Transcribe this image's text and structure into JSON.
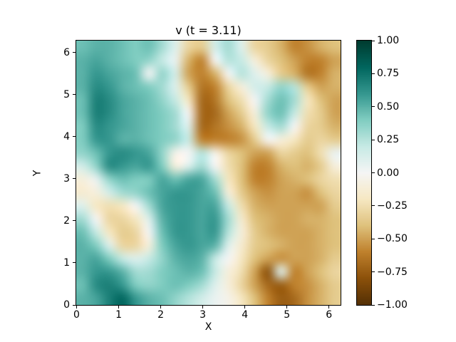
{
  "figure": {
    "background": "#ffffff"
  },
  "chart_data": {
    "type": "heatmap",
    "title": "v (t = 3.11)",
    "xlabel": "X",
    "ylabel": "Y",
    "x_range": [
      0,
      6.2832
    ],
    "y_range": [
      0,
      6.2832
    ],
    "vmin": -1.0,
    "vmax": 1.0,
    "x_tick_values": [
      0,
      1,
      2,
      3,
      4,
      5,
      6
    ],
    "x_tick_labels": [
      "0",
      "1",
      "2",
      "3",
      "4",
      "5",
      "6"
    ],
    "y_tick_values": [
      0,
      1,
      2,
      3,
      4,
      5,
      6
    ],
    "y_tick_labels": [
      "0",
      "1",
      "2",
      "3",
      "4",
      "5",
      "6"
    ],
    "colorbar": {
      "tick_values": [
        1.0,
        0.75,
        0.5,
        0.25,
        0.0,
        -0.25,
        -0.5,
        -0.75,
        -1.0
      ],
      "tick_labels": [
        "1.00",
        "0.75",
        "0.50",
        "0.25",
        "0.00",
        "−0.25",
        "−0.50",
        "−0.75",
        "−1.00"
      ]
    },
    "colormap": {
      "name": "BrBG",
      "stops": [
        [
          0.0,
          "#543005"
        ],
        [
          0.1,
          "#8c510a"
        ],
        [
          0.2,
          "#bf812d"
        ],
        [
          0.3,
          "#dfc27d"
        ],
        [
          0.4,
          "#f6e8c3"
        ],
        [
          0.5,
          "#f5f5f5"
        ],
        [
          0.6,
          "#c7eae5"
        ],
        [
          0.7,
          "#80cdc1"
        ],
        [
          0.8,
          "#35978f"
        ],
        [
          0.9,
          "#01665e"
        ],
        [
          1.0,
          "#003c30"
        ]
      ]
    },
    "grid_orientation": "rows_top_to_bottom",
    "values": [
      [
        0.45,
        0.5,
        0.5,
        0.45,
        0.4,
        0.45,
        0.3,
        0.1,
        -0.3,
        -0.35,
        0.15,
        0.3,
        0.1,
        -0.3,
        -0.35,
        -0.45,
        -0.6,
        -0.55,
        -0.45,
        -0.4
      ],
      [
        0.5,
        0.55,
        0.5,
        0.45,
        0.4,
        0.35,
        0.2,
        0.05,
        -0.45,
        -0.6,
        0.0,
        0.25,
        0.2,
        -0.1,
        -0.3,
        -0.4,
        -0.5,
        -0.6,
        -0.6,
        -0.5
      ],
      [
        0.5,
        0.6,
        0.55,
        0.5,
        0.45,
        0.0,
        0.35,
        0.15,
        -0.5,
        -0.6,
        -0.45,
        0.0,
        0.25,
        0.1,
        -0.1,
        -0.35,
        -0.45,
        -0.65,
        -0.6,
        -0.45
      ],
      [
        0.5,
        0.65,
        0.6,
        0.5,
        0.45,
        0.4,
        0.3,
        0.1,
        -0.35,
        -0.65,
        -0.6,
        -0.3,
        -0.1,
        0.15,
        0.2,
        0.35,
        0.25,
        -0.35,
        -0.5,
        -0.45
      ],
      [
        0.45,
        0.7,
        0.65,
        0.55,
        0.5,
        0.45,
        0.35,
        0.2,
        -0.2,
        -0.7,
        -0.65,
        -0.4,
        -0.25,
        0.0,
        0.3,
        0.45,
        0.3,
        -0.2,
        -0.4,
        -0.5
      ],
      [
        0.45,
        0.7,
        0.65,
        0.55,
        0.5,
        0.45,
        0.4,
        0.3,
        0.0,
        -0.7,
        -0.7,
        -0.5,
        -0.35,
        -0.1,
        0.35,
        0.45,
        0.2,
        -0.25,
        -0.35,
        -0.5
      ],
      [
        0.4,
        0.65,
        0.6,
        0.55,
        0.5,
        0.45,
        0.4,
        0.3,
        0.1,
        -0.7,
        -0.65,
        -0.55,
        -0.45,
        -0.2,
        0.2,
        0.3,
        0.0,
        -0.3,
        -0.35,
        -0.45
      ],
      [
        0.4,
        0.6,
        0.6,
        0.5,
        0.5,
        0.45,
        0.4,
        0.35,
        0.2,
        -0.6,
        -0.6,
        -0.6,
        -0.55,
        -0.35,
        0.0,
        -0.1,
        -0.2,
        -0.35,
        -0.3,
        -0.35
      ],
      [
        0.35,
        0.45,
        0.6,
        0.65,
        0.6,
        0.55,
        0.35,
        -0.05,
        0.0,
        0.25,
        -0.05,
        -0.3,
        -0.4,
        -0.5,
        -0.5,
        -0.3,
        -0.35,
        -0.4,
        -0.25,
        0.05
      ],
      [
        0.15,
        0.35,
        0.65,
        0.6,
        0.55,
        0.6,
        0.4,
        -0.1,
        0.1,
        0.3,
        0.0,
        -0.25,
        -0.4,
        -0.6,
        -0.6,
        -0.45,
        -0.4,
        -0.45,
        -0.35,
        -0.1
      ],
      [
        -0.1,
        0.05,
        0.35,
        0.45,
        0.4,
        0.4,
        0.55,
        0.45,
        0.55,
        0.55,
        0.3,
        -0.2,
        -0.4,
        -0.6,
        -0.6,
        -0.5,
        -0.45,
        -0.4,
        -0.3,
        -0.25
      ],
      [
        -0.15,
        -0.1,
        0.15,
        0.3,
        0.35,
        0.45,
        0.55,
        0.6,
        0.6,
        0.55,
        0.45,
        -0.1,
        -0.35,
        -0.5,
        -0.55,
        -0.5,
        -0.5,
        -0.55,
        -0.4,
        -0.3
      ],
      [
        0.1,
        -0.2,
        -0.25,
        -0.2,
        0.0,
        0.3,
        0.55,
        0.6,
        0.6,
        0.55,
        0.55,
        0.2,
        -0.25,
        -0.45,
        -0.5,
        -0.5,
        -0.5,
        -0.5,
        -0.5,
        -0.35
      ],
      [
        0.3,
        0.0,
        -0.3,
        -0.3,
        -0.2,
        0.1,
        0.5,
        0.6,
        0.6,
        0.55,
        0.6,
        0.3,
        -0.15,
        -0.4,
        -0.45,
        -0.5,
        -0.5,
        -0.45,
        -0.45,
        -0.4
      ],
      [
        0.45,
        0.2,
        -0.2,
        -0.35,
        -0.3,
        0.0,
        0.45,
        0.6,
        0.6,
        0.55,
        0.6,
        0.25,
        -0.1,
        -0.35,
        -0.45,
        -0.5,
        -0.5,
        -0.5,
        -0.45,
        -0.4
      ],
      [
        0.5,
        0.4,
        0.1,
        -0.3,
        -0.3,
        -0.1,
        0.4,
        0.55,
        0.6,
        0.55,
        0.5,
        0.1,
        -0.15,
        -0.35,
        -0.4,
        -0.45,
        -0.5,
        -0.5,
        -0.45,
        -0.4
      ],
      [
        0.5,
        0.55,
        0.4,
        0.2,
        0.1,
        0.2,
        0.35,
        0.5,
        0.55,
        0.5,
        0.2,
        0.0,
        -0.2,
        -0.4,
        -0.5,
        -0.55,
        -0.5,
        -0.5,
        -0.45,
        -0.35
      ],
      [
        0.5,
        0.6,
        0.6,
        0.5,
        0.3,
        0.3,
        0.4,
        0.45,
        0.5,
        0.45,
        0.2,
        -0.1,
        -0.25,
        -0.5,
        -0.8,
        0.1,
        -0.6,
        -0.5,
        -0.4,
        -0.3
      ],
      [
        0.45,
        0.65,
        0.7,
        0.6,
        0.4,
        0.35,
        0.4,
        0.45,
        0.4,
        0.3,
        0.1,
        -0.1,
        -0.3,
        -0.5,
        -0.7,
        -0.75,
        -0.6,
        -0.55,
        -0.45,
        -0.35
      ],
      [
        0.5,
        0.55,
        0.7,
        0.8,
        0.6,
        0.5,
        0.45,
        0.35,
        0.25,
        0.15,
        0.05,
        -0.05,
        -0.2,
        -0.4,
        -0.6,
        -0.75,
        -0.7,
        -0.55,
        -0.45,
        -0.35
      ]
    ]
  }
}
